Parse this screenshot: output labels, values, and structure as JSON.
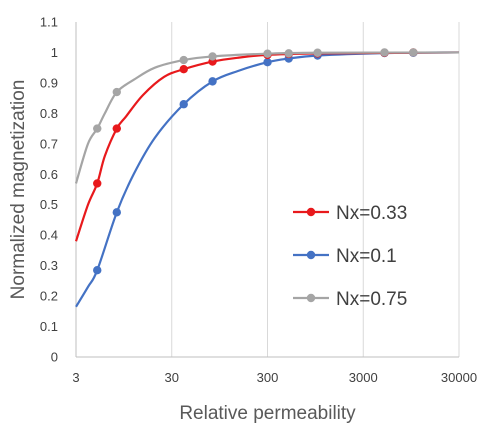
{
  "chart_data": {
    "type": "line",
    "xscale": "log",
    "xlabel": "Relative permeability",
    "ylabel": "Normalized magnetization",
    "xlim": [
      3,
      30000
    ],
    "ylim": [
      0,
      1.1
    ],
    "x_tick_values": [
      3,
      30,
      300,
      3000,
      30000
    ],
    "x_tick_labels": [
      "3",
      "30",
      "300",
      "3000",
      "30000"
    ],
    "y_tick_values": [
      0,
      0.1,
      0.2,
      0.3,
      0.4,
      0.5,
      0.6,
      0.7,
      0.8,
      0.9,
      1.0,
      1.1
    ],
    "y_tick_labels": [
      "0",
      "0.1",
      "0.2",
      "0.3",
      "0.4",
      "0.5",
      "0.6",
      "0.7",
      "0.8",
      "0.9",
      "1",
      "1.1"
    ],
    "grid": {
      "vertical": true,
      "horizontal": false
    },
    "legend_position": "center-right",
    "series": [
      {
        "name": "Nx=0.33",
        "color": "#e8191c",
        "line": [
          [
            3,
            0.38
          ],
          [
            4,
            0.5
          ],
          [
            5,
            0.57
          ],
          [
            6,
            0.66
          ],
          [
            8,
            0.75
          ],
          [
            10,
            0.79
          ],
          [
            15,
            0.86
          ],
          [
            25,
            0.92
          ],
          [
            40,
            0.945
          ],
          [
            80,
            0.97
          ],
          [
            150,
            0.983
          ],
          [
            300,
            0.992
          ],
          [
            1000,
            0.997
          ],
          [
            30000,
            1.0
          ]
        ],
        "points": [
          [
            5,
            0.57
          ],
          [
            8,
            0.75
          ],
          [
            40,
            0.945
          ],
          [
            80,
            0.97
          ],
          [
            300,
            0.992
          ],
          [
            500,
            0.995
          ],
          [
            1000,
            0.997
          ],
          [
            5000,
            0.999
          ],
          [
            10000,
            1.0
          ]
        ]
      },
      {
        "name": "Nx=0.1",
        "color": "#4472c4",
        "line": [
          [
            3,
            0.165
          ],
          [
            4,
            0.23
          ],
          [
            5,
            0.285
          ],
          [
            8,
            0.475
          ],
          [
            12,
            0.6
          ],
          [
            20,
            0.72
          ],
          [
            40,
            0.83
          ],
          [
            80,
            0.905
          ],
          [
            150,
            0.94
          ],
          [
            300,
            0.968
          ],
          [
            500,
            0.98
          ],
          [
            1000,
            0.99
          ],
          [
            5000,
            0.998
          ],
          [
            30000,
            1.0
          ]
        ],
        "points": [
          [
            5,
            0.285
          ],
          [
            8,
            0.475
          ],
          [
            40,
            0.83
          ],
          [
            80,
            0.905
          ],
          [
            300,
            0.968
          ],
          [
            500,
            0.98
          ],
          [
            1000,
            0.99
          ],
          [
            5000,
            0.998
          ],
          [
            10000,
            0.999
          ]
        ]
      },
      {
        "name": "Nx=0.75",
        "color": "#a5a5a5",
        "line": [
          [
            3,
            0.57
          ],
          [
            4,
            0.7
          ],
          [
            5,
            0.75
          ],
          [
            6,
            0.8
          ],
          [
            8,
            0.87
          ],
          [
            12,
            0.91
          ],
          [
            20,
            0.95
          ],
          [
            40,
            0.975
          ],
          [
            80,
            0.987
          ],
          [
            300,
            0.996
          ],
          [
            1000,
            0.999
          ],
          [
            30000,
            1.0
          ]
        ],
        "points": [
          [
            5,
            0.75
          ],
          [
            8,
            0.87
          ],
          [
            40,
            0.975
          ],
          [
            80,
            0.987
          ],
          [
            300,
            0.996
          ],
          [
            500,
            0.997
          ],
          [
            1000,
            0.999
          ],
          [
            5000,
            1.0
          ],
          [
            10000,
            1.0
          ]
        ]
      }
    ]
  }
}
